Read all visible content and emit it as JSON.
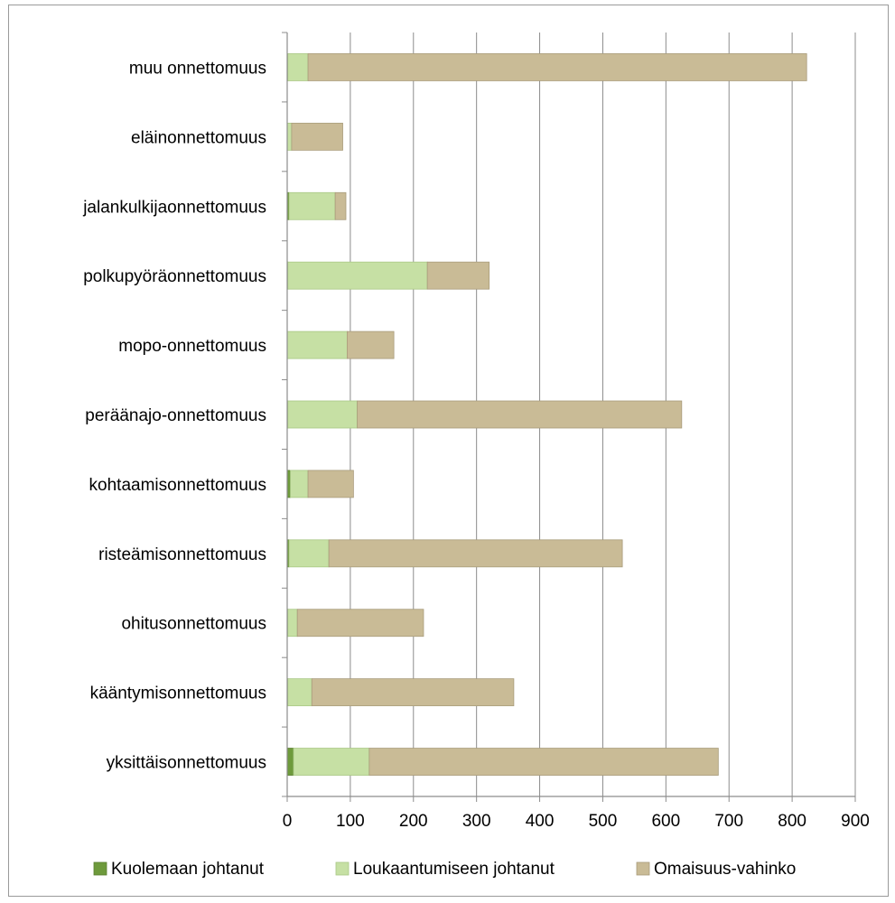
{
  "chart_data": {
    "type": "bar",
    "orientation": "horizontal",
    "stacked": true,
    "categories": [
      "muu onnettomuus",
      "eläinonnettomuus",
      "jalankulkijaonnettomuus",
      "polkupyöräonnettomuus",
      "mopo-onnettomuus",
      "peräänajo-onnettomuus",
      "kohtaamisonnettomuus",
      "risteämisonnettomuus",
      "ohitusonnettomuus",
      "kääntymisonnettomuus",
      "yksittäisonnettomuus"
    ],
    "series": [
      {
        "name": "Kuolemaan johtanut",
        "color": "#6e9a3c",
        "values": [
          1,
          0,
          3,
          1,
          0,
          1,
          5,
          3,
          1,
          1,
          10
        ]
      },
      {
        "name": "Loukaantumiseen johtanut",
        "color": "#c6e0a4",
        "values": [
          32,
          7,
          73,
          221,
          95,
          110,
          28,
          63,
          15,
          38,
          120
        ]
      },
      {
        "name": "Omaisuus-vahinko",
        "color": "#c9bb96",
        "values": [
          790,
          81,
          17,
          98,
          74,
          514,
          72,
          465,
          200,
          320,
          553
        ]
      }
    ],
    "xlim": [
      0,
      900
    ],
    "xticks": [
      "0",
      "100",
      "200",
      "300",
      "400",
      "500",
      "600",
      "700",
      "800",
      "900"
    ],
    "grid": "vertical",
    "legend": "bottom",
    "title": "",
    "xlabel": "",
    "ylabel": ""
  }
}
